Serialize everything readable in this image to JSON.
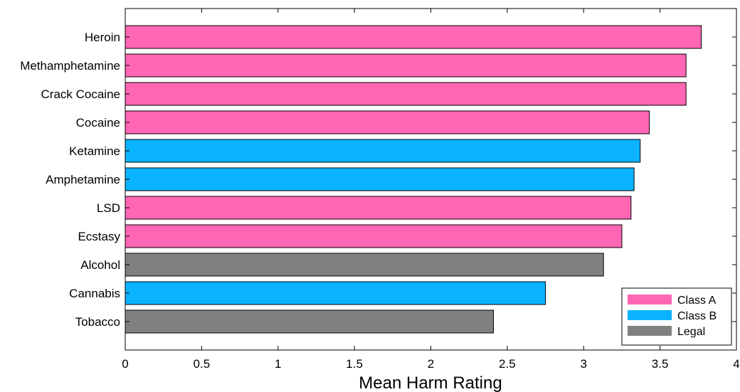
{
  "chart_data": {
    "type": "bar",
    "orientation": "horizontal",
    "title": "",
    "xlabel": "Mean Harm Rating",
    "ylabel": "",
    "xlim": [
      0,
      4
    ],
    "xticks": [
      "0",
      "0.5",
      "1",
      "1.5",
      "2",
      "2.5",
      "3",
      "3.5",
      "4"
    ],
    "grid": false,
    "legend_position": "bottom-right",
    "categories": [
      "Heroin",
      "Methamphetamine",
      "Crack Cocaine",
      "Cocaine",
      "Ketamine",
      "Amphetamine",
      "LSD",
      "Ecstasy",
      "Alcohol",
      "Cannabis",
      "Tobacco"
    ],
    "values": [
      3.77,
      3.67,
      3.67,
      3.43,
      3.37,
      3.33,
      3.31,
      3.25,
      3.13,
      2.75,
      2.41
    ],
    "classes": [
      "Class A",
      "Class A",
      "Class A",
      "Class A",
      "Class B",
      "Class B",
      "Class A",
      "Class A",
      "Legal",
      "Class B",
      "Legal"
    ],
    "legend": [
      {
        "label": "Class A",
        "color": "#ff66b3"
      },
      {
        "label": "Class B",
        "color": "#0ab3ff"
      },
      {
        "label": "Legal",
        "color": "#808080"
      }
    ]
  }
}
